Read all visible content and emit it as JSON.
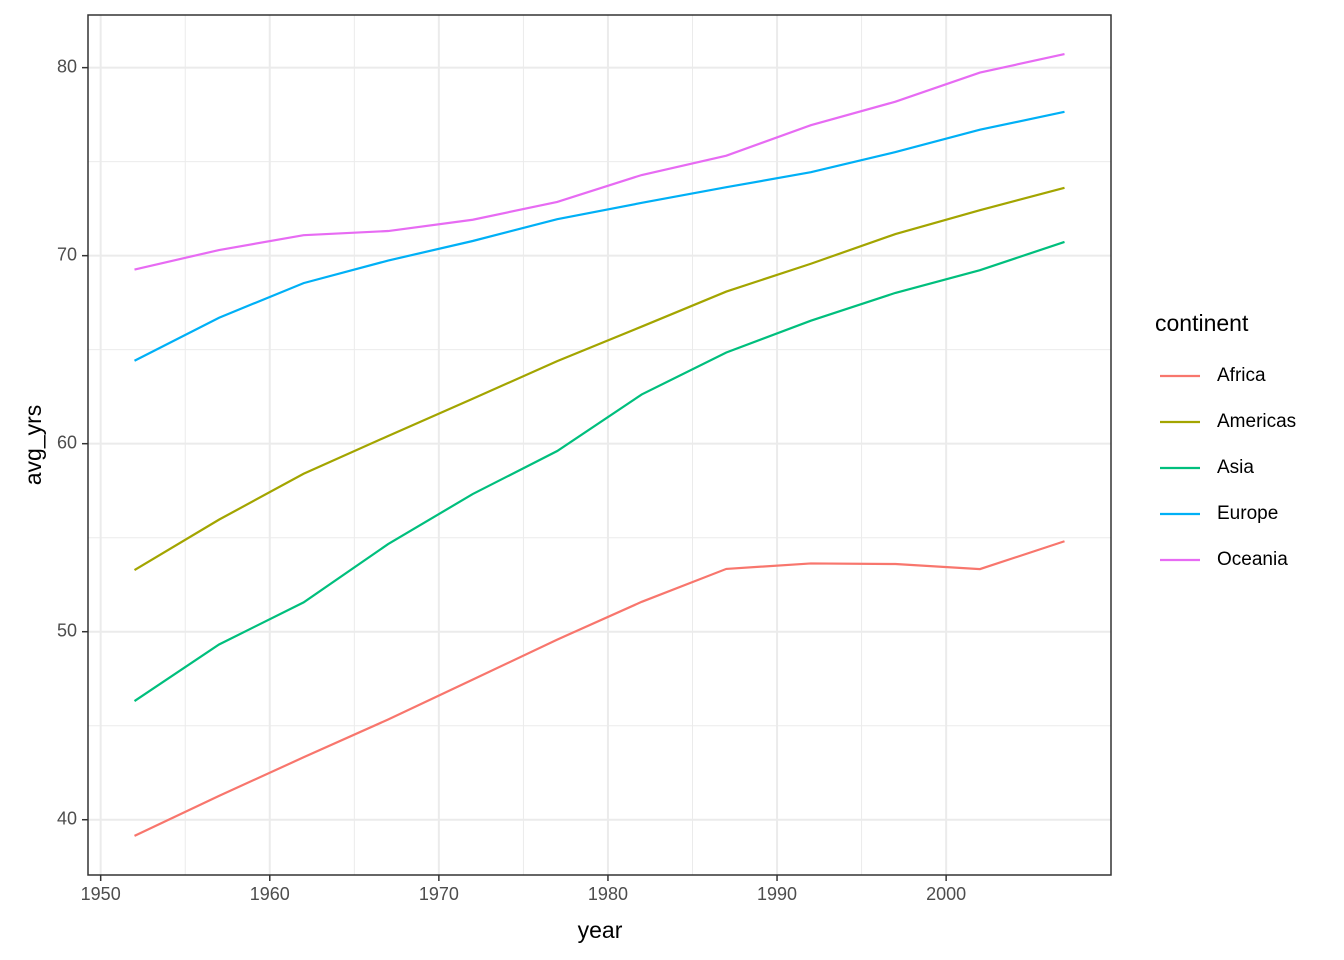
{
  "chart_data": {
    "type": "line",
    "x_label": "year",
    "y_label": "avg_yrs",
    "x": [
      1952,
      1957,
      1962,
      1967,
      1972,
      1977,
      1982,
      1987,
      1992,
      1997,
      2002,
      2007
    ],
    "series": [
      {
        "name": "Africa",
        "color": "#f8766d",
        "values": [
          39.14,
          41.27,
          43.32,
          45.33,
          47.45,
          49.58,
          51.59,
          53.34,
          53.63,
          53.6,
          53.33,
          54.81
        ]
      },
      {
        "name": "Americas",
        "color": "#a3a500",
        "values": [
          53.28,
          55.96,
          58.4,
          60.41,
          62.39,
          64.39,
          66.23,
          68.09,
          69.57,
          71.15,
          72.42,
          73.61
        ]
      },
      {
        "name": "Asia",
        "color": "#00bf7d",
        "values": [
          46.31,
          49.32,
          51.56,
          54.66,
          57.32,
          59.61,
          62.62,
          64.85,
          66.54,
          68.02,
          69.23,
          70.73
        ]
      },
      {
        "name": "Europe",
        "color": "#00b0f6",
        "values": [
          64.41,
          66.7,
          68.54,
          69.74,
          70.78,
          71.94,
          72.81,
          73.64,
          74.44,
          75.51,
          76.7,
          77.65
        ]
      },
      {
        "name": "Oceania",
        "color": "#e76bf3",
        "values": [
          69.26,
          70.3,
          71.09,
          71.31,
          71.91,
          72.86,
          74.29,
          75.32,
          76.94,
          78.19,
          79.74,
          80.72
        ]
      }
    ],
    "legend_title": "continent",
    "legend_position": "right",
    "xlim": [
      1949.25,
      2009.75
    ],
    "xticks": [
      1950,
      1960,
      1970,
      1980,
      1990,
      2000
    ],
    "ylim": [
      37.06,
      82.8
    ],
    "yticks": [
      40,
      50,
      60,
      70,
      80
    ],
    "grid": true
  }
}
